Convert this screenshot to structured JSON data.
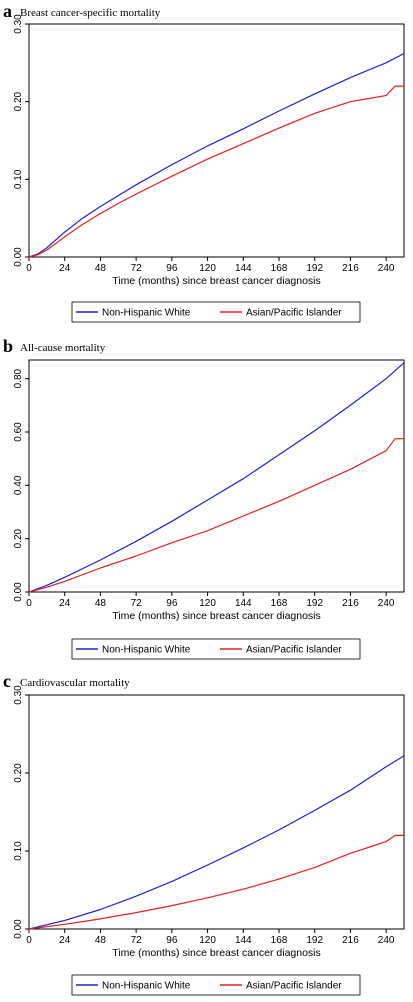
{
  "chart_data": [
    {
      "type": "line",
      "panel_label": "a",
      "title": "Breast cancer-specific mortality",
      "xlabel": "Time (months) since breast cancer diagnosis",
      "ylabel": "",
      "xlim": [
        0,
        252
      ],
      "ylim": [
        0,
        0.3
      ],
      "x_ticks": [
        0,
        24,
        48,
        72,
        96,
        120,
        144,
        168,
        192,
        216,
        240
      ],
      "y_ticks": [
        0,
        0.1,
        0.2,
        0.3
      ],
      "y_tick_labels": [
        "0.00",
        "0.10",
        "0.20",
        "0.30"
      ],
      "series": [
        {
          "name": "Non-Hispanic White",
          "color": "#2020d0",
          "x": [
            0,
            6,
            12,
            24,
            36,
            48,
            60,
            72,
            96,
            120,
            144,
            168,
            192,
            216,
            240,
            252
          ],
          "y": [
            0,
            0.004,
            0.012,
            0.032,
            0.05,
            0.065,
            0.079,
            0.093,
            0.119,
            0.143,
            0.165,
            0.188,
            0.21,
            0.231,
            0.25,
            0.262
          ]
        },
        {
          "name": "Asian/Pacific Islander",
          "color": "#e02020",
          "x": [
            0,
            6,
            12,
            24,
            36,
            48,
            60,
            72,
            96,
            120,
            144,
            168,
            192,
            216,
            240,
            246,
            252
          ],
          "y": [
            0,
            0.003,
            0.009,
            0.026,
            0.042,
            0.056,
            0.069,
            0.081,
            0.104,
            0.126,
            0.146,
            0.166,
            0.185,
            0.2,
            0.208,
            0.22,
            0.22
          ]
        }
      ],
      "legend": "bottom"
    },
    {
      "type": "line",
      "panel_label": "b",
      "title": "All-cause mortality",
      "xlabel": "Time (months) since breast cancer diagnosis",
      "ylabel": "",
      "xlim": [
        0,
        252
      ],
      "ylim": [
        0,
        0.87
      ],
      "x_ticks": [
        0,
        24,
        48,
        72,
        96,
        120,
        144,
        168,
        192,
        216,
        240
      ],
      "y_ticks": [
        0,
        0.2,
        0.4,
        0.6,
        0.8
      ],
      "y_tick_labels": [
        "0.00",
        "0.20",
        "0.40",
        "0.60",
        "0.80"
      ],
      "series": [
        {
          "name": "Non-Hispanic White",
          "color": "#2020d0",
          "x": [
            0,
            12,
            24,
            48,
            72,
            96,
            120,
            144,
            168,
            192,
            216,
            240,
            252
          ],
          "y": [
            0,
            0.025,
            0.055,
            0.12,
            0.19,
            0.265,
            0.345,
            0.425,
            0.515,
            0.605,
            0.7,
            0.8,
            0.86
          ]
        },
        {
          "name": "Asian/Pacific Islander",
          "color": "#e02020",
          "x": [
            0,
            12,
            24,
            48,
            72,
            96,
            120,
            144,
            168,
            192,
            216,
            240,
            246,
            252
          ],
          "y": [
            0,
            0.018,
            0.04,
            0.09,
            0.135,
            0.185,
            0.23,
            0.285,
            0.34,
            0.4,
            0.46,
            0.53,
            0.575,
            0.575
          ]
        }
      ],
      "legend": "bottom"
    },
    {
      "type": "line",
      "panel_label": "c",
      "title": "Cardiovascular mortality",
      "xlabel": "Time (months) since breast cancer diagnosis",
      "ylabel": "",
      "xlim": [
        0,
        252
      ],
      "ylim": [
        0,
        0.3
      ],
      "x_ticks": [
        0,
        24,
        48,
        72,
        96,
        120,
        144,
        168,
        192,
        216,
        240
      ],
      "y_ticks": [
        0,
        0.1,
        0.2,
        0.3
      ],
      "y_tick_labels": [
        "0.00",
        "0.10",
        "0.20",
        "0.30"
      ],
      "series": [
        {
          "name": "Non-Hispanic White",
          "color": "#2020d0",
          "x": [
            0,
            24,
            48,
            72,
            96,
            120,
            144,
            168,
            192,
            216,
            240,
            252
          ],
          "y": [
            0,
            0.011,
            0.025,
            0.042,
            0.061,
            0.082,
            0.104,
            0.127,
            0.152,
            0.178,
            0.208,
            0.222
          ]
        },
        {
          "name": "Asian/Pacific Islander",
          "color": "#e02020",
          "x": [
            0,
            24,
            48,
            72,
            96,
            120,
            144,
            168,
            192,
            216,
            240,
            246,
            252
          ],
          "y": [
            0,
            0.006,
            0.013,
            0.021,
            0.03,
            0.04,
            0.051,
            0.064,
            0.079,
            0.097,
            0.112,
            0.12,
            0.12
          ]
        }
      ],
      "legend": "bottom"
    }
  ]
}
